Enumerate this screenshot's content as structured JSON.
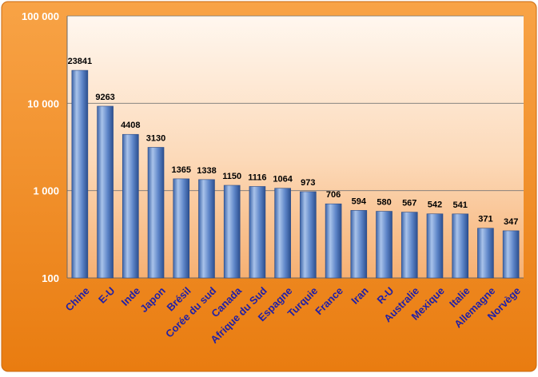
{
  "chart_data": {
    "type": "bar",
    "title": "",
    "xlabel": "",
    "ylabel": "",
    "yscale": "log",
    "ylim": [
      100,
      100000
    ],
    "yticks": [
      100,
      1000,
      10000,
      100000
    ],
    "ytick_labels": [
      "100",
      "1 000",
      "10 000",
      "100 000"
    ],
    "grid": true,
    "legend": "none",
    "categories": [
      "Chine",
      "E-U",
      "Inde",
      "Japon",
      "Brésil",
      "Corée du sud",
      "Canada",
      "Afrique du Sud",
      "Espagne",
      "Turquie",
      "France",
      "Iran",
      "R-U",
      "Australie",
      "Mexique",
      "Italie",
      "Allemagne",
      "Norvège"
    ],
    "values": [
      23841,
      9263,
      4408,
      3130,
      1365,
      1338,
      1150,
      1116,
      1064,
      973,
      706,
      594,
      580,
      567,
      542,
      541,
      371,
      347
    ],
    "colors": {
      "bar_light": "#9fb9e3",
      "bar_mid": "#5b84c8",
      "bar_dark": "#2f5596",
      "background_outer": "#ef8a1c",
      "plot_top": "#fff6ee",
      "plot_bottom": "#f6b277",
      "category_label": "#1f1fa8",
      "tick_label": "#ffffff",
      "value_label": "#000000"
    }
  }
}
